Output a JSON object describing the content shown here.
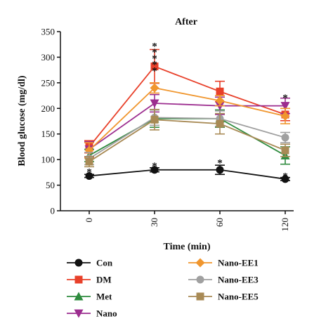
{
  "chart_data": {
    "type": "line",
    "title": "After",
    "xlabel": "Time (min)",
    "ylabel": "Blood glucose (mg/dl)",
    "x": [
      "0",
      "30",
      "60",
      "120"
    ],
    "ylim": [
      0,
      350
    ],
    "yticks": [
      0,
      50,
      100,
      150,
      200,
      250,
      300,
      350
    ],
    "grid": false,
    "legend": "bottom",
    "series": [
      {
        "name": "Con",
        "color": "#111111",
        "marker": "circle",
        "values": [
          68,
          80,
          80,
          62
        ],
        "errors": [
          3,
          4,
          9,
          3
        ]
      },
      {
        "name": "DM",
        "color": "#e8402a",
        "marker": "square",
        "values": [
          125,
          282,
          233,
          188
        ],
        "errors": [
          12,
          33,
          20,
          12
        ]
      },
      {
        "name": "Met",
        "color": "#2e8b3e",
        "marker": "triangle-up",
        "values": [
          108,
          180,
          180,
          108
        ],
        "errors": [
          12,
          17,
          17,
          17
        ]
      },
      {
        "name": "Nano",
        "color": "#9c2d8f",
        "marker": "triangle-down",
        "values": [
          120,
          210,
          205,
          205
        ],
        "errors": [
          15,
          17,
          17,
          15
        ]
      },
      {
        "name": "Nano-EE1",
        "color": "#f0962e",
        "marker": "diamond",
        "values": [
          118,
          240,
          215,
          185
        ],
        "errors": [
          15,
          10,
          10,
          15
        ]
      },
      {
        "name": "Nano-EE3",
        "color": "#a0a0a0",
        "marker": "circle",
        "values": [
          102,
          182,
          180,
          143
        ],
        "errors": [
          12,
          15,
          15,
          10
        ]
      },
      {
        "name": "Nano-EE5",
        "color": "#a88a55",
        "marker": "square",
        "values": [
          96,
          178,
          170,
          118
        ],
        "errors": [
          10,
          20,
          20,
          12
        ]
      }
    ],
    "annotations": [
      {
        "text": "*",
        "x": "0",
        "y": 80,
        "color": "#111111"
      },
      {
        "text": "*",
        "x": "30",
        "y": 92,
        "color": "#111111"
      },
      {
        "text": "*",
        "x": "60",
        "y": 98,
        "color": "#111111"
      },
      {
        "text": "*",
        "x": "120",
        "y": 72,
        "color": "#111111"
      },
      {
        "text": "*",
        "x": "30",
        "y": 326,
        "color": "#e8402a"
      },
      {
        "text": "*",
        "x": "30",
        "y": 314,
        "color": "#a0a0a0"
      },
      {
        "text": "*",
        "x": "30",
        "y": 302,
        "color": "#a88a55"
      },
      {
        "text": "*",
        "x": "30",
        "y": 290,
        "color": "#a0a0a0"
      },
      {
        "text": "*",
        "x": "30",
        "y": 278,
        "color": "#2e8b3e"
      },
      {
        "text": "*",
        "x": "120",
        "y": 225,
        "color": "#2e8b3e"
      }
    ]
  }
}
